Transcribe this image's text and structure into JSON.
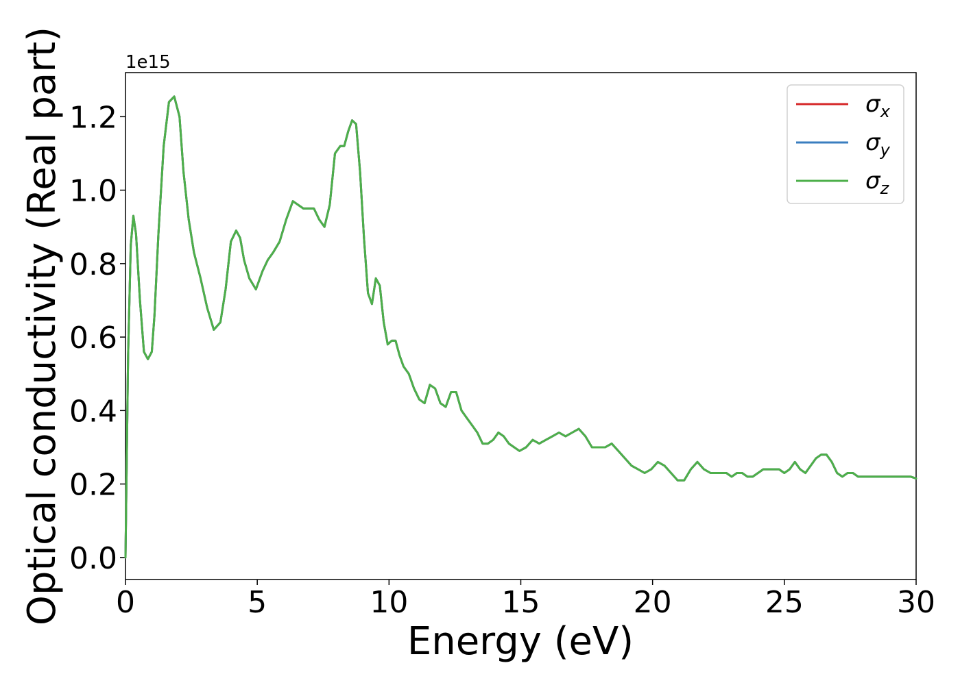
{
  "chart_data": {
    "type": "line",
    "xlabel": "Energy (eV)",
    "ylabel": "Optical conductivity (Real part)",
    "y_offset_label": "1e15",
    "xlim": [
      0,
      30
    ],
    "ylim": [
      -0.06,
      1.32
    ],
    "x_ticks": [
      0,
      5,
      10,
      15,
      20,
      25,
      30
    ],
    "x_tick_labels": [
      "0",
      "5",
      "10",
      "15",
      "20",
      "25",
      "30"
    ],
    "y_ticks": [
      0.0,
      0.2,
      0.4,
      0.6,
      0.8,
      1.0,
      1.2
    ],
    "y_tick_labels": [
      "0.0",
      "0.2",
      "0.4",
      "0.6",
      "0.8",
      "1.0",
      "1.2"
    ],
    "grid": false,
    "legend_position": "top-right",
    "series": [
      {
        "name": "σx",
        "symbol": "σ",
        "subscript": "x",
        "color": "#d62728"
      },
      {
        "name": "σy",
        "symbol": "σ",
        "subscript": "y",
        "color": "#3a7ebf"
      },
      {
        "name": "σz",
        "symbol": "σ",
        "subscript": "z",
        "color": "#4daf4a"
      }
    ],
    "x": [
      0,
      0.1,
      0.2,
      0.3,
      0.4,
      0.55,
      0.7,
      0.85,
      1.0,
      1.1,
      1.25,
      1.45,
      1.65,
      1.85,
      2.05,
      2.2,
      2.4,
      2.6,
      2.85,
      3.1,
      3.35,
      3.6,
      3.8,
      4.0,
      4.2,
      4.35,
      4.5,
      4.7,
      4.95,
      5.2,
      5.4,
      5.6,
      5.85,
      6.1,
      6.35,
      6.55,
      6.75,
      6.95,
      7.15,
      7.35,
      7.55,
      7.75,
      7.95,
      8.15,
      8.3,
      8.45,
      8.6,
      8.75,
      8.9,
      9.05,
      9.2,
      9.35,
      9.5,
      9.65,
      9.8,
      9.95,
      10.1,
      10.25,
      10.4,
      10.55,
      10.75,
      10.95,
      11.15,
      11.35,
      11.55,
      11.75,
      11.95,
      12.15,
      12.35,
      12.55,
      12.75,
      12.95,
      13.15,
      13.35,
      13.55,
      13.75,
      13.95,
      14.15,
      14.35,
      14.55,
      14.75,
      14.95,
      15.2,
      15.45,
      15.7,
      15.95,
      16.2,
      16.45,
      16.7,
      16.95,
      17.2,
      17.45,
      17.7,
      17.95,
      18.2,
      18.45,
      18.7,
      18.95,
      19.2,
      19.45,
      19.7,
      19.95,
      20.2,
      20.45,
      20.7,
      20.95,
      21.2,
      21.45,
      21.7,
      21.95,
      22.2,
      22.4,
      22.6,
      22.8,
      23.0,
      23.2,
      23.4,
      23.6,
      23.8,
      24.0,
      24.2,
      24.4,
      24.6,
      24.8,
      25.0,
      25.2,
      25.4,
      25.6,
      25.8,
      26.0,
      26.2,
      26.4,
      26.6,
      26.8,
      27.0,
      27.2,
      27.4,
      27.6,
      27.8,
      28.0,
      28.2,
      28.4,
      28.6,
      28.8,
      29.0,
      29.2,
      29.4,
      29.6,
      29.8,
      30.0
    ],
    "y": [
      0.0,
      0.55,
      0.85,
      0.93,
      0.88,
      0.7,
      0.56,
      0.54,
      0.56,
      0.66,
      0.88,
      1.12,
      1.24,
      1.255,
      1.2,
      1.05,
      0.92,
      0.83,
      0.76,
      0.68,
      0.62,
      0.64,
      0.73,
      0.86,
      0.89,
      0.87,
      0.81,
      0.76,
      0.73,
      0.78,
      0.81,
      0.83,
      0.86,
      0.92,
      0.97,
      0.96,
      0.95,
      0.95,
      0.95,
      0.92,
      0.9,
      0.96,
      1.1,
      1.12,
      1.12,
      1.16,
      1.19,
      1.18,
      1.05,
      0.87,
      0.72,
      0.69,
      0.76,
      0.74,
      0.64,
      0.58,
      0.59,
      0.59,
      0.55,
      0.52,
      0.5,
      0.46,
      0.43,
      0.42,
      0.47,
      0.46,
      0.42,
      0.41,
      0.45,
      0.45,
      0.4,
      0.38,
      0.36,
      0.34,
      0.31,
      0.31,
      0.32,
      0.34,
      0.33,
      0.31,
      0.3,
      0.29,
      0.3,
      0.32,
      0.31,
      0.32,
      0.33,
      0.34,
      0.33,
      0.34,
      0.35,
      0.33,
      0.3,
      0.3,
      0.3,
      0.31,
      0.29,
      0.27,
      0.25,
      0.24,
      0.23,
      0.24,
      0.26,
      0.25,
      0.23,
      0.21,
      0.21,
      0.24,
      0.26,
      0.24,
      0.23,
      0.23,
      0.23,
      0.23,
      0.22,
      0.23,
      0.23,
      0.22,
      0.22,
      0.23,
      0.24,
      0.24,
      0.24,
      0.24,
      0.23,
      0.24,
      0.26,
      0.24,
      0.23,
      0.25,
      0.27,
      0.28,
      0.28,
      0.26,
      0.23,
      0.22,
      0.23,
      0.23,
      0.22,
      0.22,
      0.22,
      0.22,
      0.22,
      0.22,
      0.22,
      0.22,
      0.22,
      0.22,
      0.22,
      0.215
    ]
  }
}
